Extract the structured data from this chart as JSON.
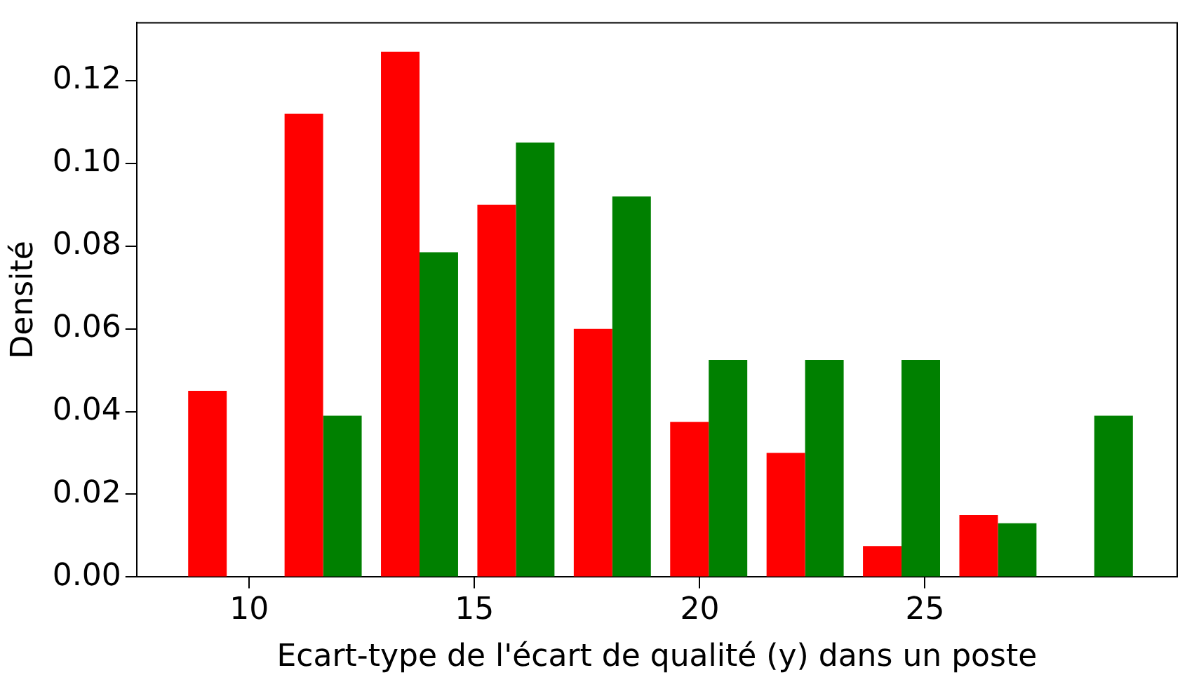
{
  "chart_data": {
    "type": "histogram",
    "xlabel": "Ecart-type de l'écart de qualité (y) dans un poste",
    "ylabel": "Densité",
    "bins": [
      8.43,
      10.57,
      12.71,
      14.85,
      16.99,
      19.13,
      21.27,
      23.41,
      25.55,
      27.69,
      29.83
    ],
    "series": [
      {
        "color": "#ff0000",
        "values": [
          0.045,
          0.112,
          0.127,
          0.09,
          0.06,
          0.0375,
          0.03,
          0.0075,
          0.015,
          0
        ]
      },
      {
        "color": "#008000",
        "values": [
          0,
          0.039,
          0.0785,
          0.105,
          0.092,
          0.0525,
          0.0525,
          0.0525,
          0.013,
          0.039
        ]
      }
    ],
    "xlim": [
      7.5,
      30.6
    ],
    "xticks": [
      10,
      15,
      20,
      25
    ],
    "ylim": [
      0,
      0.134
    ],
    "yticks": [
      {
        "value": 0,
        "label": "0.00"
      },
      {
        "value": 0.02,
        "label": "0.02"
      },
      {
        "value": 0.04,
        "label": "0.04"
      },
      {
        "value": 0.06,
        "label": "0.06"
      },
      {
        "value": 0.08,
        "label": "0.08"
      },
      {
        "value": 0.1,
        "label": "0.10"
      },
      {
        "value": 0.12,
        "label": "0.12"
      }
    ],
    "grid": false,
    "legend": false
  }
}
